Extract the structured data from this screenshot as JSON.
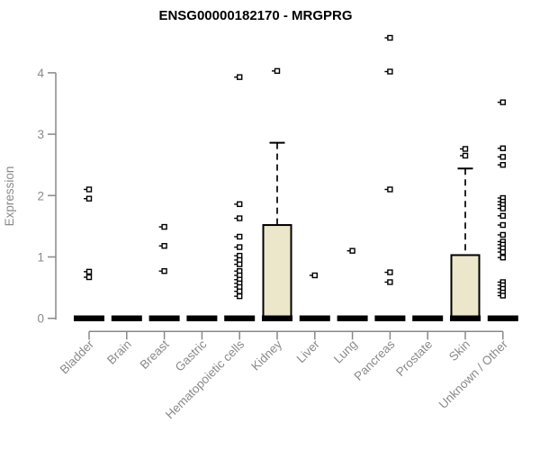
{
  "chart_data": {
    "type": "boxplot",
    "title": "ENSG00000182170 - MRGPRG",
    "ylabel": "Expression",
    "xlabel": "",
    "ylim": [
      0,
      4
    ],
    "yticks": [
      0,
      1,
      2,
      3,
      4
    ],
    "grid": false,
    "legend": "none",
    "categories": [
      "Bladder",
      "Brain",
      "Breast",
      "Gastric",
      "Hematopoietic cells",
      "Kidney",
      "Liver",
      "Lung",
      "Pancreas",
      "Prostate",
      "Skin",
      "Unknown / Other"
    ],
    "boxes": [
      {
        "category": "Bladder",
        "q1": 0,
        "median": 0,
        "q3": 0,
        "whisker_low": 0,
        "whisker_high": 0,
        "outliers": [
          2.1,
          1.95,
          0.76,
          0.67
        ]
      },
      {
        "category": "Brain",
        "q1": 0,
        "median": 0,
        "q3": 0,
        "whisker_low": 0,
        "whisker_high": 0,
        "outliers": []
      },
      {
        "category": "Breast",
        "q1": 0,
        "median": 0,
        "q3": 0,
        "whisker_low": 0,
        "whisker_high": 0,
        "outliers": [
          1.49,
          1.18,
          0.77
        ]
      },
      {
        "category": "Gastric",
        "q1": 0,
        "median": 0,
        "q3": 0,
        "whisker_low": 0,
        "whisker_high": 0,
        "outliers": []
      },
      {
        "category": "Hematopoietic cells",
        "q1": 0,
        "median": 0,
        "q3": 0,
        "whisker_low": 0,
        "whisker_high": 0,
        "outliers": [
          3.93,
          1.86,
          1.63,
          1.33,
          1.16,
          1.02,
          0.95,
          0.88,
          0.77,
          0.7,
          0.63,
          0.57,
          0.51,
          0.44,
          0.36
        ]
      },
      {
        "category": "Kidney",
        "q1": 0,
        "median": 0,
        "q3": 1.52,
        "whisker_low": 0,
        "whisker_high": 2.86,
        "outliers": [
          4.03
        ]
      },
      {
        "category": "Liver",
        "q1": 0,
        "median": 0,
        "q3": 0,
        "whisker_low": 0,
        "whisker_high": 0,
        "outliers": [
          0.7
        ]
      },
      {
        "category": "Lung",
        "q1": 0,
        "median": 0,
        "q3": 0,
        "whisker_low": 0,
        "whisker_high": 0,
        "outliers": [
          1.1
        ]
      },
      {
        "category": "Pancreas",
        "q1": 0,
        "median": 0,
        "q3": 0,
        "whisker_low": 0,
        "whisker_high": 0,
        "outliers": [
          4.57,
          4.02,
          2.1,
          0.75,
          0.59
        ]
      },
      {
        "category": "Prostate",
        "q1": 0,
        "median": 0,
        "q3": 0,
        "whisker_low": 0,
        "whisker_high": 0,
        "outliers": []
      },
      {
        "category": "Skin",
        "q1": 0,
        "median": 0,
        "q3": 1.03,
        "whisker_low": 0,
        "whisker_high": 2.44,
        "outliers": [
          2.76,
          2.65
        ]
      },
      {
        "category": "Unknown / Other",
        "q1": 0,
        "median": 0,
        "q3": 0,
        "whisker_low": 0,
        "whisker_high": 0,
        "outliers": [
          3.52,
          2.77,
          2.63,
          2.5,
          1.96,
          1.9,
          1.85,
          1.79,
          1.67,
          1.52,
          1.36,
          1.25,
          1.2,
          1.14,
          1.08,
          0.99,
          0.59,
          0.54,
          0.48,
          0.42,
          0.37
        ]
      }
    ],
    "colors": {
      "box_fill": "#ece7ca",
      "box_stroke": "#000000",
      "median": "#000000",
      "axis": "#888888",
      "tick_label": "#8a8a8a",
      "title": "#000000",
      "outlier_fill": "#ffffff",
      "background": "#ffffff"
    }
  }
}
